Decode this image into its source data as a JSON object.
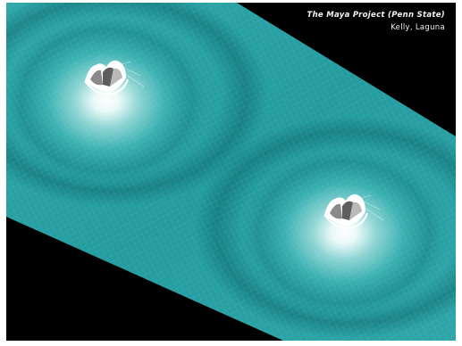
{
  "credits": {
    "title": "The Maya Project (Penn State)",
    "authors": "Kelly, Laguna"
  },
  "scene": {
    "background_color": "#000000",
    "surface_color": "#2aa3a6",
    "surface_shadow_color": "#157b80",
    "highlight_color": "#ffffff",
    "peaks": 2
  }
}
